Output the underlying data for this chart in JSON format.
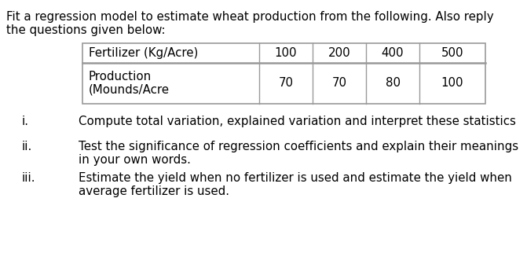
{
  "title_line1": "Fit a regression model to estimate wheat production from the following. Also reply",
  "title_line2": "the questions given below:",
  "table": {
    "col_headers": [
      "Fertilizer (Kg/Acre)",
      "100",
      "200",
      "400",
      "500"
    ],
    "row1_label": "Production",
    "row1_label2": "(Mounds/Acre",
    "row1_values": [
      "70",
      "70",
      "80",
      "100"
    ]
  },
  "questions": [
    {
      "roman": "i.",
      "text": "Compute total variation, explained variation and interpret these statistics"
    },
    {
      "roman": "ii.",
      "text": "Test the significance of regression coefficients and explain their meanings\nin your own words."
    },
    {
      "roman": "iii.",
      "text": "Estimate the yield when no fertilizer is used and estimate the yield when\naverage fertilizer is used."
    }
  ],
  "font_size_title": 10.8,
  "font_size_table": 10.8,
  "font_size_questions": 10.8,
  "text_color": "#000000",
  "background_color": "#ffffff",
  "table_line_color": "#999999"
}
